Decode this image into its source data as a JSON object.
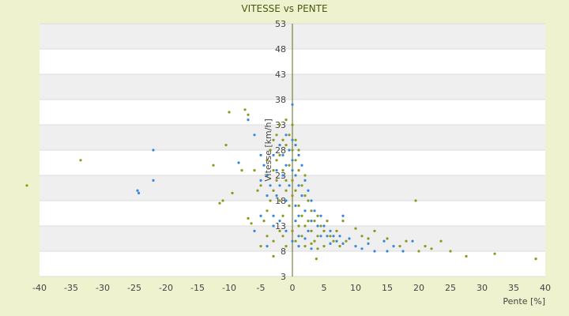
{
  "chart_data": {
    "type": "scatter",
    "title": "VITESSE vs PENTE",
    "xlabel": "Pente [%]",
    "ylabel": "Vitesse [km/h]",
    "xlim": [
      -40,
      40
    ],
    "ylim": [
      3,
      53
    ],
    "x_ticks": [
      "-40",
      "-35",
      "-30",
      "-25",
      "-20",
      "-15",
      "-10",
      "-5",
      "0",
      "5",
      "10",
      "15",
      "20",
      "25",
      "30",
      "35",
      "40"
    ],
    "y_ticks": [
      "3",
      "8",
      "13",
      "18",
      "23",
      "28",
      "33",
      "38",
      "43",
      "48",
      "53"
    ],
    "grid": true,
    "legend": "none",
    "colors": {
      "series_a": "#8a9a1e",
      "series_b": "#3a86d8",
      "band": "#efefef",
      "axis": "#5c6b1a"
    },
    "series": [
      {
        "color": "#8a9a1e",
        "points": [
          [
            -33.5,
            26
          ],
          [
            -12.5,
            25
          ],
          [
            -10.5,
            29
          ],
          [
            -10,
            35.5
          ],
          [
            -9.5,
            19.5
          ],
          [
            -11,
            18
          ],
          [
            -11.5,
            17.5
          ],
          [
            -8,
            24
          ],
          [
            -7.5,
            36
          ],
          [
            -7,
            35
          ],
          [
            -7,
            14.5
          ],
          [
            -6.5,
            13.5
          ],
          [
            -6,
            24
          ],
          [
            -5.5,
            20
          ],
          [
            -5,
            21
          ],
          [
            -5,
            9
          ],
          [
            -4.5,
            14
          ],
          [
            -4,
            16
          ],
          [
            -4,
            26
          ],
          [
            -3.5,
            28
          ],
          [
            -3.5,
            18
          ],
          [
            -3,
            20
          ],
          [
            -3,
            24
          ],
          [
            -3,
            30
          ],
          [
            -2.5,
            22
          ],
          [
            -2.5,
            26
          ],
          [
            -2.5,
            31
          ],
          [
            -2,
            18
          ],
          [
            -2,
            27
          ],
          [
            -2,
            33
          ],
          [
            -1.5,
            24
          ],
          [
            -1.5,
            30
          ],
          [
            -1.5,
            15
          ],
          [
            -1,
            29
          ],
          [
            -1,
            20
          ],
          [
            -1,
            34
          ],
          [
            -1,
            22
          ],
          [
            -0.5,
            25
          ],
          [
            -0.5,
            31
          ],
          [
            -0.5,
            17
          ],
          [
            0,
            28
          ],
          [
            0,
            22
          ],
          [
            0,
            33
          ],
          [
            0,
            19
          ],
          [
            0.5,
            26
          ],
          [
            0.5,
            20
          ],
          [
            0.5,
            30
          ],
          [
            1,
            24
          ],
          [
            1,
            17
          ],
          [
            1,
            28
          ],
          [
            1.5,
            21
          ],
          [
            1.5,
            15
          ],
          [
            2,
            19
          ],
          [
            2,
            23
          ],
          [
            2,
            13
          ],
          [
            2.5,
            18
          ],
          [
            2.5,
            14
          ],
          [
            3,
            16
          ],
          [
            3,
            12
          ],
          [
            3.5,
            14
          ],
          [
            3.5,
            10
          ],
          [
            4,
            15
          ],
          [
            4,
            11
          ],
          [
            4.5,
            13
          ],
          [
            5,
            12
          ],
          [
            5,
            9
          ],
          [
            5.5,
            14
          ],
          [
            6,
            11
          ],
          [
            6.5,
            10
          ],
          [
            7,
            12
          ],
          [
            7.5,
            9
          ],
          [
            8,
            14
          ],
          [
            8.5,
            10
          ],
          [
            -2,
            12
          ],
          [
            -1.5,
            11
          ],
          [
            -1,
            9
          ],
          [
            0,
            12
          ],
          [
            0.5,
            10
          ],
          [
            1,
            13
          ],
          [
            1.5,
            11
          ],
          [
            2,
            9
          ],
          [
            -3,
            10
          ],
          [
            -4,
            11
          ],
          [
            3,
            9.5
          ],
          [
            4,
            8.5
          ],
          [
            10,
            12.5
          ],
          [
            11,
            11
          ],
          [
            12,
            10.5
          ],
          [
            13,
            12
          ],
          [
            15,
            10.5
          ],
          [
            17,
            9
          ],
          [
            18,
            10
          ],
          [
            20,
            8
          ],
          [
            21,
            9
          ],
          [
            22,
            8.5
          ],
          [
            23.5,
            10
          ],
          [
            25,
            8
          ],
          [
            27.5,
            7
          ],
          [
            32,
            7.5
          ],
          [
            38.5,
            6.5
          ],
          [
            19.5,
            18
          ],
          [
            -3,
            7
          ],
          [
            3.8,
            6.5
          ]
        ]
      },
      {
        "color": "#3a86d8",
        "points": [
          [
            -22,
            28
          ],
          [
            -22,
            22
          ],
          [
            -24.5,
            20
          ],
          [
            -24.3,
            19.5
          ],
          [
            -8.5,
            25.5
          ],
          [
            -7,
            34
          ],
          [
            -6,
            31
          ],
          [
            -5,
            27
          ],
          [
            -5,
            22
          ],
          [
            -4.5,
            25
          ],
          [
            -4,
            23
          ],
          [
            -4,
            19
          ],
          [
            -3.5,
            21
          ],
          [
            -3,
            27
          ],
          [
            -3,
            15
          ],
          [
            -2.5,
            24
          ],
          [
            -2.5,
            19
          ],
          [
            -2,
            29
          ],
          [
            -2,
            21
          ],
          [
            -1.5,
            27
          ],
          [
            -1.5,
            23
          ],
          [
            -1,
            25
          ],
          [
            -1,
            31
          ],
          [
            -1,
            18
          ],
          [
            -0.5,
            28
          ],
          [
            -0.5,
            21
          ],
          [
            0,
            37
          ],
          [
            0,
            26
          ],
          [
            0,
            30
          ],
          [
            0,
            24
          ],
          [
            0.5,
            29
          ],
          [
            0.5,
            23
          ],
          [
            0.5,
            17
          ],
          [
            1,
            27
          ],
          [
            1,
            21
          ],
          [
            1,
            15
          ],
          [
            1.5,
            25
          ],
          [
            1.5,
            19
          ],
          [
            2,
            22
          ],
          [
            2,
            16
          ],
          [
            2.5,
            20
          ],
          [
            2.5,
            12
          ],
          [
            3,
            18
          ],
          [
            3,
            14
          ],
          [
            3.5,
            16
          ],
          [
            4,
            13
          ],
          [
            4.5,
            15
          ],
          [
            4.5,
            11
          ],
          [
            5,
            13
          ],
          [
            5.5,
            11
          ],
          [
            6,
            12
          ],
          [
            6,
            9.5
          ],
          [
            6.5,
            11
          ],
          [
            7,
            10
          ],
          [
            7.5,
            11
          ],
          [
            8,
            9.5
          ],
          [
            8,
            15
          ],
          [
            9,
            10.5
          ],
          [
            10,
            9
          ],
          [
            11,
            8.5
          ],
          [
            12,
            9.5
          ],
          [
            13,
            8
          ],
          [
            14.5,
            10
          ],
          [
            15,
            8
          ],
          [
            16,
            9
          ],
          [
            17.5,
            8
          ],
          [
            -3,
            13
          ],
          [
            -2,
            14
          ],
          [
            -1,
            12
          ],
          [
            0.5,
            14
          ],
          [
            1,
            11
          ],
          [
            2,
            10.5
          ],
          [
            -5,
            15
          ],
          [
            -6,
            12
          ],
          [
            -4,
            9
          ],
          [
            0,
            10
          ],
          [
            19,
            10
          ],
          [
            3,
            8.5
          ],
          [
            1,
            9
          ]
        ]
      }
    ],
    "outliers": [
      [
        -42,
        21
      ]
    ]
  }
}
